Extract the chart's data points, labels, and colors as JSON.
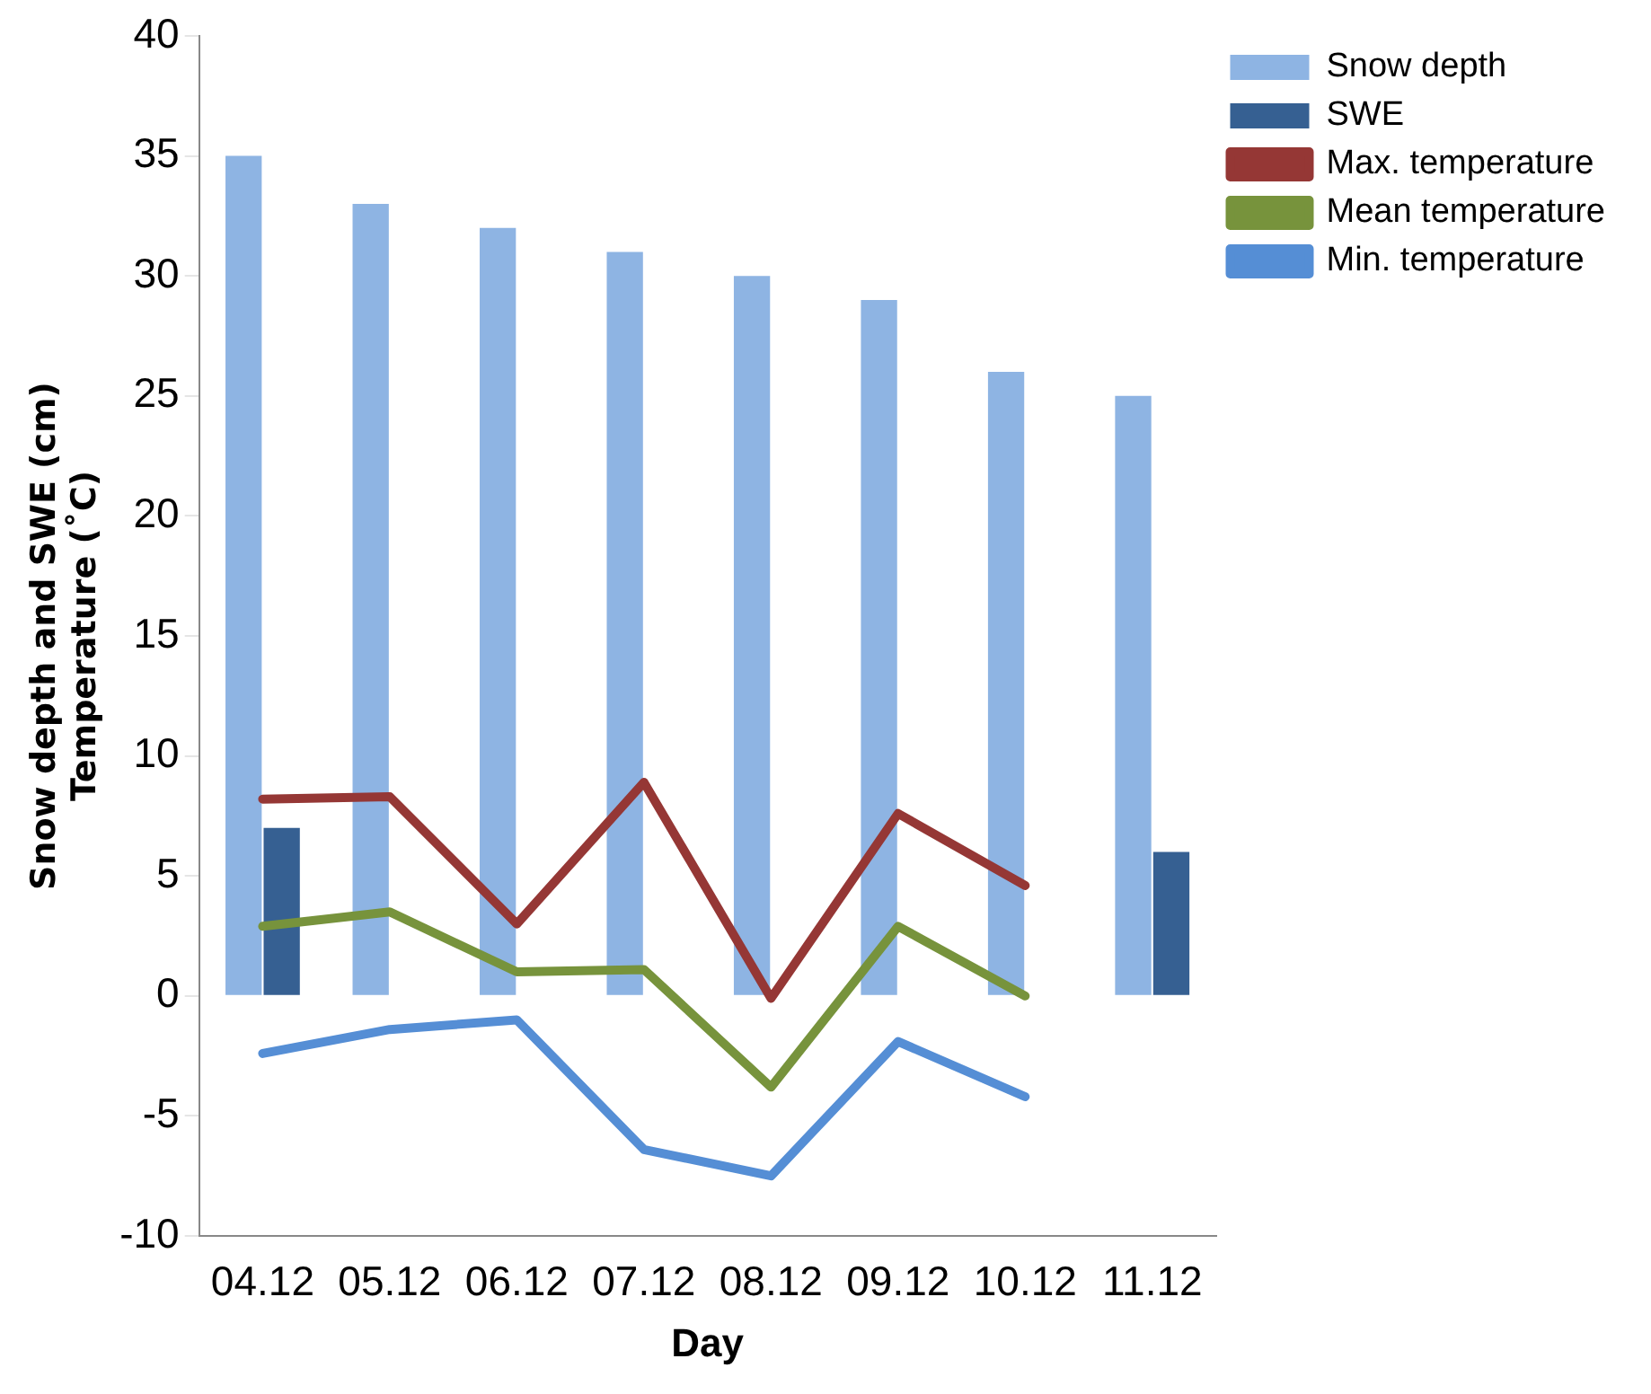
{
  "chart_data": {
    "type": "bar",
    "xlabel": "Day",
    "ylabel": "Snow depth and SWE (cm)\nTemperature (˚C)",
    "categories": [
      "04.12",
      "05.12",
      "06.12",
      "07.12",
      "08.12",
      "09.12",
      "10.12",
      "11.12"
    ],
    "series": [
      {
        "name": "Snow depth",
        "color": "#8eb4e3",
        "values": [
          35,
          33,
          32,
          31,
          30,
          29,
          26,
          25
        ]
      },
      {
        "name": "SWE",
        "color": "#366092",
        "values": [
          7,
          null,
          null,
          null,
          null,
          null,
          null,
          6
        ]
      },
      {
        "name": "Max. temperature",
        "type": "line",
        "color": "#953735",
        "values": [
          8.2,
          8.3,
          3.0,
          8.9,
          -0.1,
          7.6,
          4.6,
          null
        ]
      },
      {
        "name": "Mean temperature",
        "type": "line",
        "color": "#77933c",
        "values": [
          2.9,
          3.5,
          1.0,
          1.1,
          -3.8,
          2.9,
          0.0,
          null
        ]
      },
      {
        "name": "Min. temperature",
        "type": "line",
        "color": "#558ed5",
        "values": [
          -2.4,
          -1.4,
          -1.0,
          -6.4,
          -7.5,
          -1.9,
          -4.2,
          null
        ]
      }
    ],
    "ylim": [
      -10,
      40
    ],
    "yticks": [
      -10,
      -5,
      0,
      5,
      10,
      15,
      20,
      25,
      30,
      35,
      40
    ],
    "grid": false,
    "legend": "top right",
    "marker": "none",
    "line_style": "solid"
  }
}
